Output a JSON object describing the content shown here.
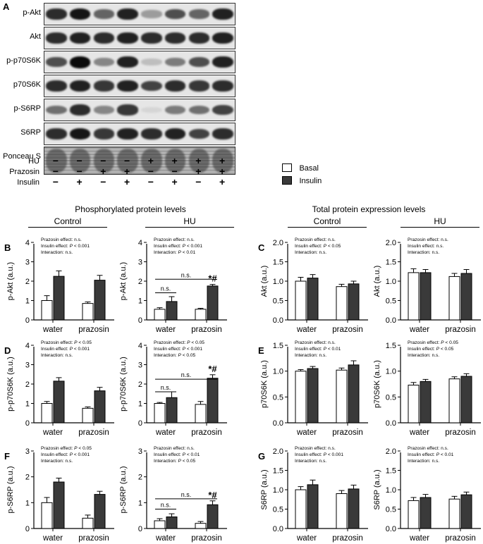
{
  "panel_a": {
    "letter": "A",
    "blot_rows": [
      "p-Akt",
      "Akt",
      "p-p70S6K",
      "p70S6K",
      "p-S6RP",
      "S6RP",
      "Ponceau S"
    ],
    "blot_intensities": [
      [
        0.85,
        0.95,
        0.6,
        0.9,
        0.35,
        0.7,
        0.6,
        0.9
      ],
      [
        0.85,
        0.9,
        0.85,
        0.9,
        0.85,
        0.85,
        0.85,
        0.9
      ],
      [
        0.7,
        1.0,
        0.45,
        0.9,
        0.2,
        0.5,
        0.7,
        0.9
      ],
      [
        0.85,
        0.9,
        0.8,
        0.9,
        0.75,
        0.85,
        0.8,
        0.85
      ],
      [
        0.55,
        0.85,
        0.45,
        0.8,
        0.1,
        0.5,
        0.55,
        0.75
      ],
      [
        0.85,
        0.95,
        0.8,
        0.9,
        0.85,
        0.9,
        0.75,
        0.85
      ],
      [
        0.6,
        0.6,
        0.6,
        0.6,
        0.6,
        0.6,
        0.6,
        0.6
      ]
    ],
    "conditions": [
      {
        "label": "HU",
        "signs": [
          "−",
          "−",
          "−",
          "−",
          "+",
          "+",
          "+",
          "+"
        ]
      },
      {
        "label": "Prazosin",
        "signs": [
          "−",
          "−",
          "+",
          "+",
          "−",
          "−",
          "+",
          "+"
        ]
      },
      {
        "label": "Insulin",
        "signs": [
          "−",
          "+",
          "−",
          "+",
          "−",
          "+",
          "−",
          "+"
        ]
      }
    ]
  },
  "legend": {
    "items": [
      {
        "label": "Basal",
        "color": "#ffffff"
      },
      {
        "label": "Insulin",
        "color": "#3a3a3a"
      }
    ]
  },
  "sections": {
    "phospho": "Phosphorylated protein levels",
    "total": "Total protein expression levels",
    "control": "Control",
    "hu": "HU"
  },
  "colors": {
    "basal": "#ffffff",
    "insulin": "#3a3a3a",
    "axis": "#000000"
  },
  "chart_data": [
    {
      "id": "B1",
      "letter": "B",
      "type": "bar",
      "ylabel": "p-Akt (a.u.)",
      "ylim": [
        0,
        4
      ],
      "yticks": [
        "0",
        "1",
        "2",
        "3",
        "4"
      ],
      "categories": [
        "water",
        "prazosin"
      ],
      "series": [
        {
          "name": "Basal",
          "values": [
            1.0,
            0.85
          ],
          "errors": [
            0.25,
            0.08
          ]
        },
        {
          "name": "Insulin",
          "values": [
            2.25,
            2.05
          ],
          "errors": [
            0.28,
            0.25
          ]
        }
      ],
      "stats": [
        "Prazosin effect: n.s.",
        "Insulin effect: P < 0.001",
        "Interaction: n.s."
      ],
      "annotations": null
    },
    {
      "id": "B2",
      "letter": "",
      "type": "bar",
      "ylabel": "p-Akt (a.u.)",
      "ylim": [
        0,
        4
      ],
      "yticks": [
        "0",
        "1",
        "2",
        "3",
        "4"
      ],
      "categories": [
        "water",
        "prazosin"
      ],
      "series": [
        {
          "name": "Basal",
          "values": [
            0.55,
            0.55
          ],
          "errors": [
            0.08,
            0.05
          ]
        },
        {
          "name": "Insulin",
          "values": [
            0.95,
            1.75
          ],
          "errors": [
            0.25,
            0.08
          ]
        }
      ],
      "stats": [
        "Prazosin effect: n.s.",
        "Insulin effect: P < 0.001",
        "Interaction: P < 0.01"
      ],
      "annotations": {
        "ns_short": "n.s.",
        "ns_long": "n.s.",
        "ns_short_y": 1.4,
        "ns_long_y": 2.1,
        "star": "*#"
      }
    },
    {
      "id": "C1",
      "letter": "C",
      "type": "bar",
      "ylabel": "Akt (a.u.)",
      "ylim": [
        0,
        2
      ],
      "yticks": [
        "0.0",
        "0.5",
        "1.0",
        "1.5",
        "2.0"
      ],
      "categories": [
        "water",
        "prazosin"
      ],
      "series": [
        {
          "name": "Basal",
          "values": [
            1.0,
            0.86
          ],
          "errors": [
            0.1,
            0.06
          ]
        },
        {
          "name": "Insulin",
          "values": [
            1.08,
            0.93
          ],
          "errors": [
            0.09,
            0.07
          ]
        }
      ],
      "stats": [
        "Prazosin effect: n.s.",
        "Insulin effect: P < 0.05",
        "Interaction: n.s."
      ],
      "annotations": null
    },
    {
      "id": "C2",
      "letter": "",
      "type": "bar",
      "ylabel": "Akt (a.u.)",
      "ylim": [
        0,
        2
      ],
      "yticks": [
        "0.0",
        "0.5",
        "1.0",
        "1.5",
        "2.0"
      ],
      "categories": [
        "water",
        "prazosin"
      ],
      "series": [
        {
          "name": "Basal",
          "values": [
            1.22,
            1.12
          ],
          "errors": [
            0.1,
            0.08
          ]
        },
        {
          "name": "Insulin",
          "values": [
            1.22,
            1.2
          ],
          "errors": [
            0.08,
            0.1
          ]
        }
      ],
      "stats": [
        "Prazosin effect: n.s.",
        "Insulin effect: n.s.",
        "Interaction: n.s."
      ],
      "annotations": null
    },
    {
      "id": "D1",
      "letter": "D",
      "type": "bar",
      "ylabel": "p-p70S6K (a.u.)",
      "ylim": [
        0,
        4
      ],
      "yticks": [
        "0",
        "1",
        "2",
        "3",
        "4"
      ],
      "categories": [
        "water",
        "prazosin"
      ],
      "series": [
        {
          "name": "Basal",
          "values": [
            1.0,
            0.75
          ],
          "errors": [
            0.1,
            0.07
          ]
        },
        {
          "name": "Insulin",
          "values": [
            2.15,
            1.65
          ],
          "errors": [
            0.18,
            0.18
          ]
        }
      ],
      "stats": [
        "Prazosin effect: P < 0.05",
        "Insulin effect: P < 0.001",
        "Interaction: n.s."
      ],
      "annotations": null
    },
    {
      "id": "D2",
      "letter": "",
      "type": "bar",
      "ylabel": "p-p70S6K (a.u.)",
      "ylim": [
        0,
        4
      ],
      "yticks": [
        "0",
        "1",
        "2",
        "3",
        "4"
      ],
      "categories": [
        "water",
        "prazosin"
      ],
      "series": [
        {
          "name": "Basal",
          "values": [
            1.0,
            0.95
          ],
          "errors": [
            0.05,
            0.15
          ]
        },
        {
          "name": "Insulin",
          "values": [
            1.3,
            2.3
          ],
          "errors": [
            0.3,
            0.18
          ]
        }
      ],
      "stats": [
        "Prazosin effect: P < 0.05",
        "Insulin effect: P < 0.001",
        "Interaction: P < 0.05"
      ],
      "annotations": {
        "ns_short": "n.s.",
        "ns_long": "n.s.",
        "ns_short_y": 1.6,
        "ns_long_y": 2.25,
        "star": "*#"
      }
    },
    {
      "id": "E1",
      "letter": "E",
      "type": "bar",
      "ylabel": "p70S6K (a.u.)",
      "ylim": [
        0,
        1.5
      ],
      "yticks": [
        "0.0",
        "0.5",
        "1.0",
        "1.5"
      ],
      "categories": [
        "water",
        "prazosin"
      ],
      "series": [
        {
          "name": "Basal",
          "values": [
            1.0,
            1.02
          ],
          "errors": [
            0.03,
            0.04
          ]
        },
        {
          "name": "Insulin",
          "values": [
            1.05,
            1.12
          ],
          "errors": [
            0.04,
            0.08
          ]
        }
      ],
      "stats": [
        "Prazosin effect: n.s.",
        "Insulin effect: P < 0.01",
        "Interaction: n.s."
      ],
      "annotations": null
    },
    {
      "id": "E2",
      "letter": "",
      "type": "bar",
      "ylabel": "p70S6K (a.u.)",
      "ylim": [
        0,
        1.5
      ],
      "yticks": [
        "0.0",
        "0.5",
        "1.0",
        "1.5"
      ],
      "categories": [
        "water",
        "prazosin"
      ],
      "series": [
        {
          "name": "Basal",
          "values": [
            0.73,
            0.85
          ],
          "errors": [
            0.05,
            0.04
          ]
        },
        {
          "name": "Insulin",
          "values": [
            0.8,
            0.9
          ],
          "errors": [
            0.04,
            0.05
          ]
        }
      ],
      "stats": [
        "Prazosin effect: P < 0.05",
        "Insulin effect: P < 0.05",
        "Interaction: n.s."
      ],
      "annotations": null
    },
    {
      "id": "F1",
      "letter": "F",
      "type": "bar",
      "ylabel": "p-S6RP (a.u.)",
      "ylim": [
        0,
        3
      ],
      "yticks": [
        "0",
        "1",
        "2",
        "3"
      ],
      "categories": [
        "water",
        "prazosin"
      ],
      "series": [
        {
          "name": "Basal",
          "values": [
            1.0,
            0.4
          ],
          "errors": [
            0.2,
            0.12
          ]
        },
        {
          "name": "Insulin",
          "values": [
            1.8,
            1.32
          ],
          "errors": [
            0.15,
            0.12
          ]
        }
      ],
      "stats": [
        "Prazosin effect: P < 0.05",
        "Insulin effect: P < 0.001",
        "Interaction: n.s."
      ],
      "annotations": null
    },
    {
      "id": "F2",
      "letter": "",
      "type": "bar",
      "ylabel": "p-S6RP (a.u.)",
      "ylim": [
        0,
        3
      ],
      "yticks": [
        "0",
        "1",
        "2",
        "3"
      ],
      "categories": [
        "water",
        "prazosin"
      ],
      "series": [
        {
          "name": "Basal",
          "values": [
            0.3,
            0.2
          ],
          "errors": [
            0.08,
            0.07
          ]
        },
        {
          "name": "Insulin",
          "values": [
            0.45,
            0.92
          ],
          "errors": [
            0.12,
            0.15
          ]
        }
      ],
      "stats": [
        "Prazosin effect: n.s.",
        "Insulin effect: P < 0.01",
        "Interaction: P < 0.05"
      ],
      "annotations": {
        "ns_short": "n.s.",
        "ns_long": "n.s.",
        "ns_short_y": 0.75,
        "ns_long_y": 1.15,
        "star": "*#"
      }
    },
    {
      "id": "G1",
      "letter": "G",
      "type": "bar",
      "ylabel": "S6RP (a.u.)",
      "ylim": [
        0,
        2
      ],
      "yticks": [
        "0.0",
        "0.5",
        "1.0",
        "1.5",
        "2.0"
      ],
      "categories": [
        "water",
        "prazosin"
      ],
      "series": [
        {
          "name": "Basal",
          "values": [
            1.0,
            0.9
          ],
          "errors": [
            0.08,
            0.08
          ]
        },
        {
          "name": "Insulin",
          "values": [
            1.13,
            1.02
          ],
          "errors": [
            0.12,
            0.1
          ]
        }
      ],
      "stats": [
        "Prazosin effect: n.s.",
        "Insulin effect: P < 0.001",
        "Interaction: n.s."
      ],
      "annotations": null
    },
    {
      "id": "G2",
      "letter": "",
      "type": "bar",
      "ylabel": "S6RP (a.u.)",
      "ylim": [
        0,
        2
      ],
      "yticks": [
        "0.0",
        "0.5",
        "1.0",
        "1.5",
        "2.0"
      ],
      "categories": [
        "water",
        "prazosin"
      ],
      "series": [
        {
          "name": "Basal",
          "values": [
            0.72,
            0.76
          ],
          "errors": [
            0.08,
            0.07
          ]
        },
        {
          "name": "Insulin",
          "values": [
            0.8,
            0.87
          ],
          "errors": [
            0.08,
            0.07
          ]
        }
      ],
      "stats": [
        "Prazosin effect: n.s.",
        "Insulin effect: P < 0.01",
        "Interaction: n.s."
      ],
      "annotations": null
    }
  ]
}
